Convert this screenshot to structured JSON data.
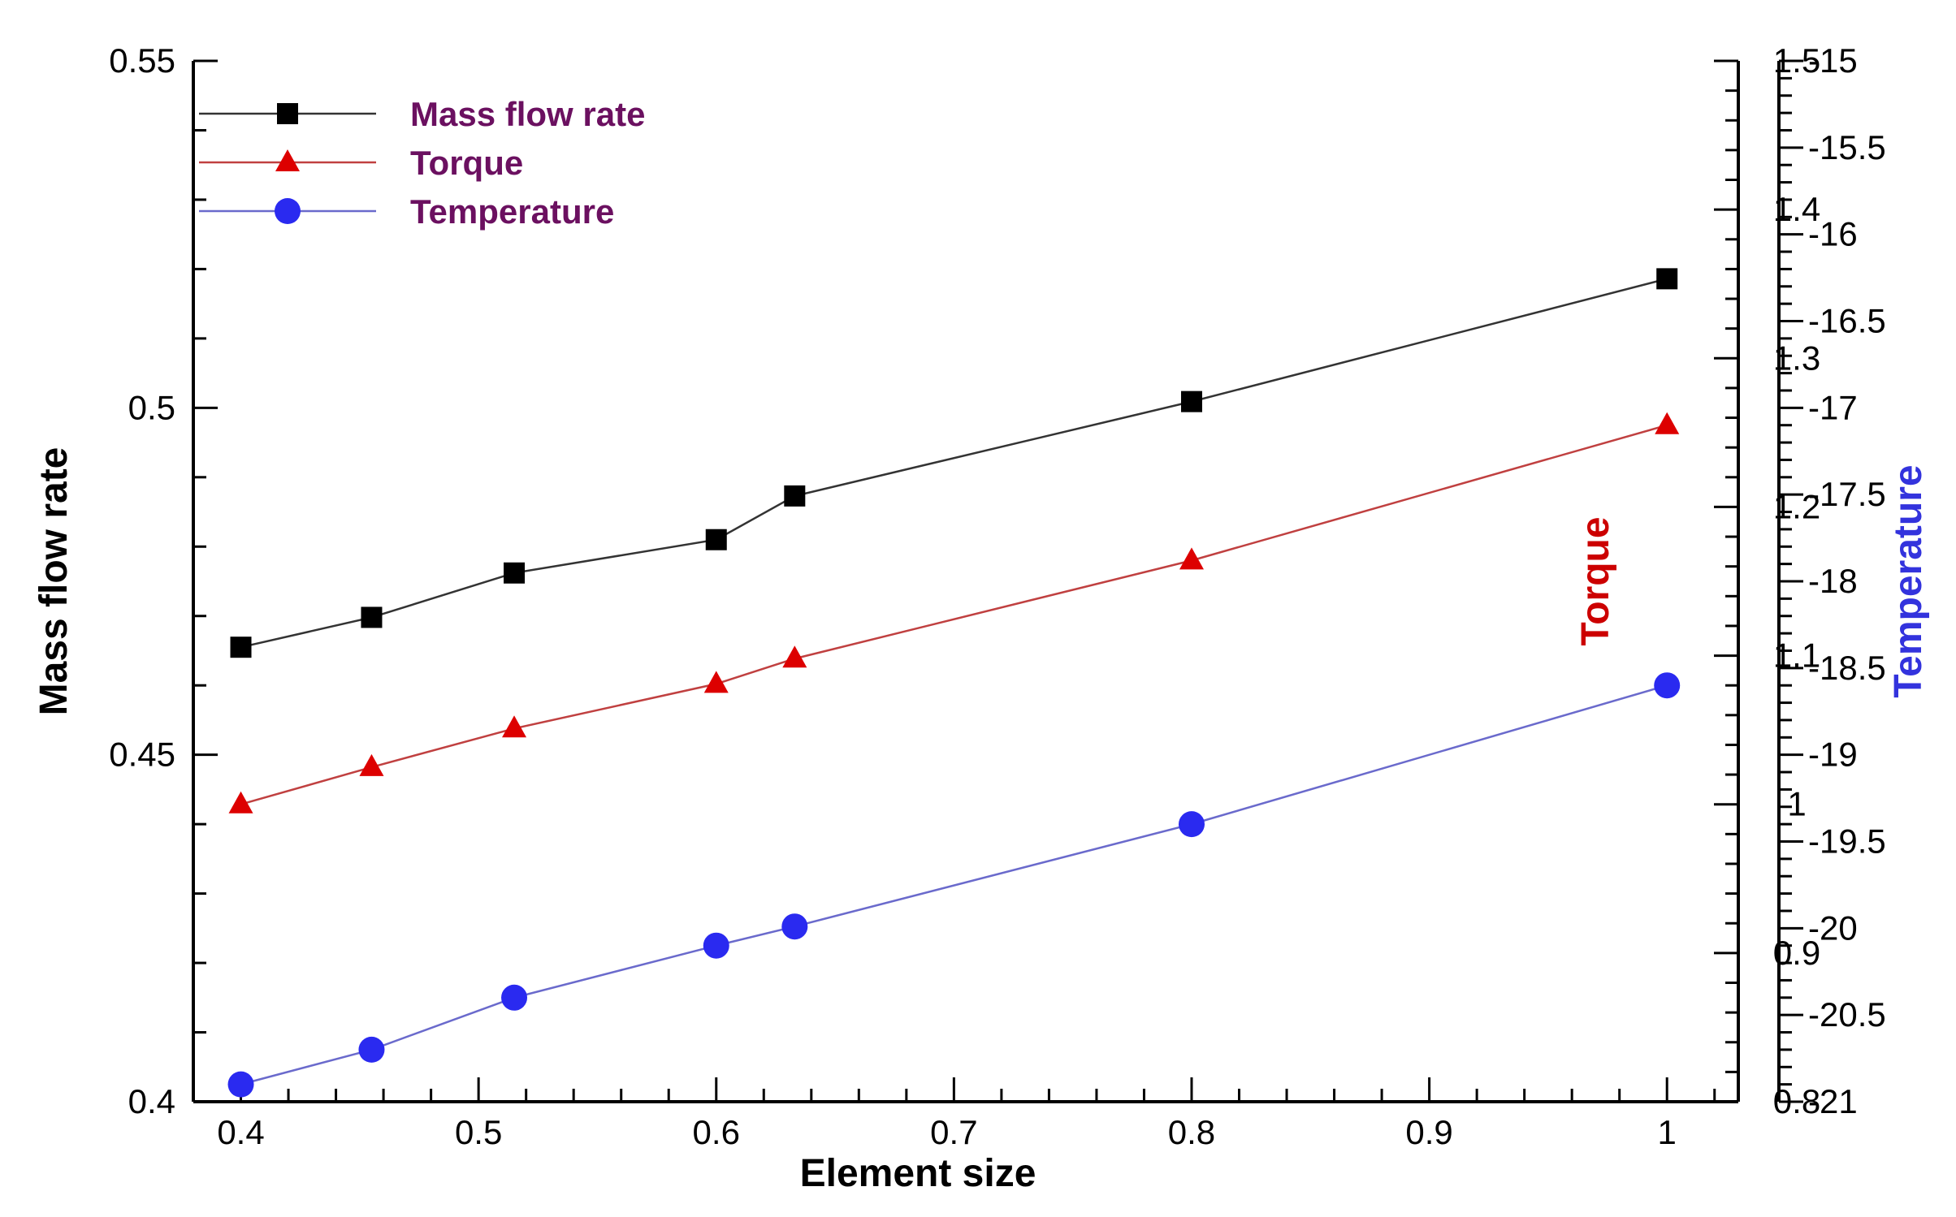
{
  "chart_data": {
    "type": "line",
    "title": "",
    "xlabel": "Element size",
    "xlim": [
      0.38,
      1.03
    ],
    "x_ticks": [
      "0.4",
      "0.5",
      "0.6",
      "0.7",
      "0.8",
      "0.9",
      "1"
    ],
    "x": [
      0.4,
      0.455,
      0.515,
      0.6,
      0.633,
      0.8,
      1.0
    ],
    "axes": {
      "left": {
        "label": "Mass flow rate",
        "ylim": [
          0.4,
          0.55
        ],
        "ticks": [
          "0.4",
          "0.45",
          "0.5",
          "0.55"
        ],
        "color": "#000000"
      },
      "right_inner": {
        "label": "Torque",
        "ylim": [
          0.8,
          1.5
        ],
        "ticks": [
          "0.8",
          "0.9",
          "1",
          "1.1",
          "1.2",
          "1.3",
          "1.4",
          "1.5"
        ],
        "color": "#cc0000"
      },
      "right_outer": {
        "label": "Temperature",
        "ylim": [
          -21,
          -15
        ],
        "ticks": [
          "-21",
          "-20.5",
          "-20",
          "-19.5",
          "-19",
          "-18.5",
          "-18",
          "-17.5",
          "-17",
          "-16.5",
          "-16",
          "-15.5",
          "-15"
        ],
        "color": "#3333dd"
      }
    },
    "series": [
      {
        "name": "Mass flow rate",
        "axis": "left",
        "marker": "square",
        "color": "#000000",
        "values": [
          0.4655,
          0.4698,
          0.4762,
          0.481,
          0.4873,
          0.5009,
          0.5186
        ]
      },
      {
        "name": "Torque",
        "axis": "right_inner",
        "marker": "triangle",
        "color": "#dd0000",
        "values": [
          1.0,
          1.025,
          1.051,
          1.081,
          1.098,
          1.164,
          1.255
        ]
      },
      {
        "name": "Temperature",
        "axis": "right_outer",
        "marker": "circle",
        "color": "#2a2af0",
        "values": [
          -20.9,
          -20.7,
          -20.4,
          -20.1,
          -19.99,
          -19.4,
          -18.6
        ]
      }
    ],
    "legend": {
      "position": "top-left",
      "label_color": "#6b1060",
      "entries": [
        "Mass flow rate",
        "Torque",
        "Temperature"
      ]
    },
    "grid": false
  }
}
